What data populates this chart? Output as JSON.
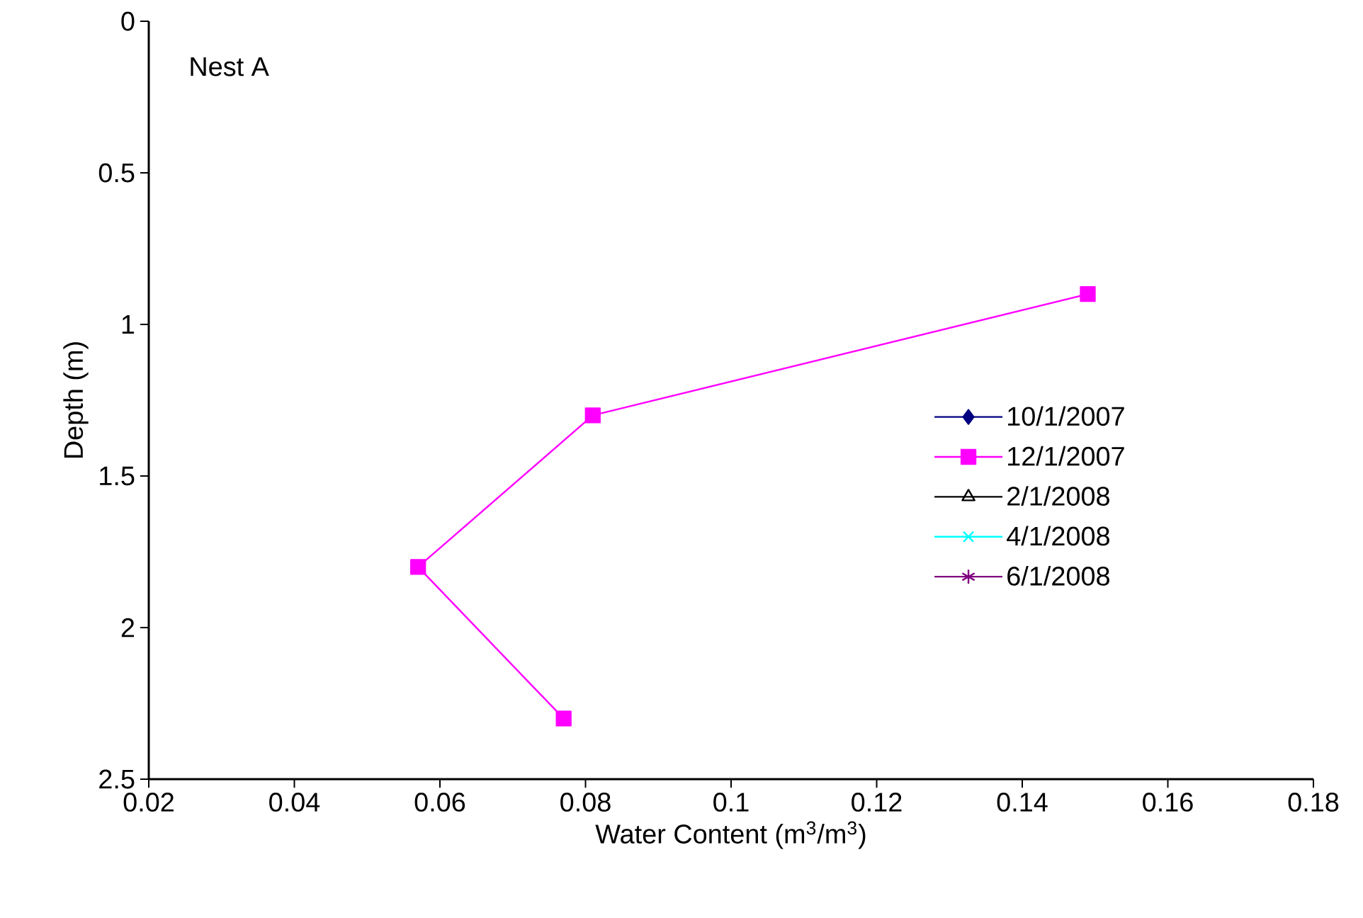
{
  "chart_data": {
    "type": "line",
    "xlabel": "Water Content  (m$^{3}$/m$^{3}$)",
    "ylabel": "Depth (m)",
    "annotations": [
      "Nest A"
    ],
    "series": [
      {
        "name": "10/1/2007",
        "color": "#000080",
        "marker": "diamond"
      },
      {
        "name": "12/1/2007",
        "color": "#ff00ff",
        "marker": "square",
        "x": [
          0.149,
          0.081,
          0.057,
          0.077
        ],
        "values": [
          0.9,
          1.3,
          1.8,
          2.3
        ]
      },
      {
        "name": "2/1/2008",
        "color": "#000000",
        "marker": "triangle"
      },
      {
        "name": "4/1/2008",
        "color": "#00ffff",
        "marker": "cross"
      },
      {
        "name": "6/1/2008",
        "color": "#800080",
        "marker": "star"
      }
    ],
    "xlim": [
      0.02,
      0.18
    ],
    "xticks": [
      0.02,
      0.04,
      0.06,
      0.08,
      0.1,
      0.12,
      0.14,
      0.16,
      0.18
    ],
    "ylim": [
      2.5,
      0
    ],
    "yticks": [
      0,
      0.5,
      1,
      1.5,
      2,
      2.5
    ],
    "legend": "right",
    "grid": false,
    "line_style": "solid"
  }
}
